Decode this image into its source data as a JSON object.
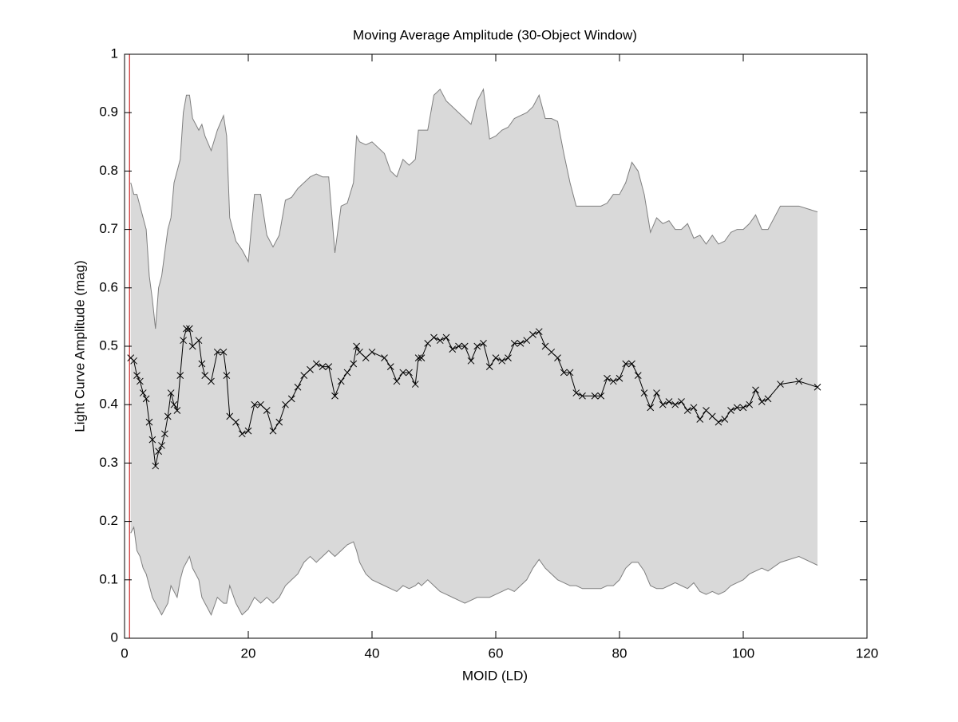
{
  "chart_data": {
    "type": "line",
    "title": "Moving Average Amplitude (30-Object Window)",
    "xlabel": "MOID (LD)",
    "ylabel": "Light Curve Amplitude (mag)",
    "x": [
      1,
      1.5,
      2,
      2.5,
      3,
      3.5,
      4,
      4.5,
      5,
      5.5,
      6,
      6.5,
      7,
      7.5,
      8,
      8.5,
      9,
      9.5,
      10,
      10.5,
      11,
      12,
      12.5,
      13,
      14,
      15,
      16,
      16.5,
      17,
      18,
      19,
      20,
      21,
      22,
      23,
      24,
      25,
      26,
      27,
      28,
      29,
      30,
      31,
      32,
      33,
      34,
      35,
      36,
      37,
      37.5,
      38,
      39,
      40,
      42,
      43,
      44,
      45,
      46,
      47,
      47.5,
      48,
      49,
      50,
      51,
      52,
      53,
      54,
      55,
      56,
      57,
      58,
      59,
      60,
      61,
      62,
      63,
      64,
      65,
      66,
      67,
      68,
      69,
      70,
      71,
      72,
      73,
      74,
      76,
      77,
      78,
      79,
      80,
      81,
      82,
      83,
      84,
      85,
      86,
      87,
      88,
      89,
      90,
      91,
      92,
      93,
      94,
      95,
      96,
      97,
      98,
      99,
      100,
      101,
      102,
      103,
      104,
      106,
      109,
      112
    ],
    "series": [
      {
        "color": "#000000",
        "marker": "x",
        "values": [
          0.48,
          0.475,
          0.45,
          0.44,
          0.42,
          0.41,
          0.37,
          0.34,
          0.295,
          0.32,
          0.33,
          0.35,
          0.38,
          0.42,
          0.4,
          0.39,
          0.45,
          0.51,
          0.53,
          0.53,
          0.5,
          0.51,
          0.47,
          0.45,
          0.44,
          0.49,
          0.49,
          0.45,
          0.38,
          0.37,
          0.35,
          0.355,
          0.4,
          0.4,
          0.39,
          0.355,
          0.37,
          0.4,
          0.41,
          0.43,
          0.45,
          0.46,
          0.47,
          0.465,
          0.465,
          0.415,
          0.44,
          0.455,
          0.47,
          0.5,
          0.49,
          0.48,
          0.49,
          0.48,
          0.465,
          0.44,
          0.455,
          0.455,
          0.435,
          0.48,
          0.48,
          0.505,
          0.515,
          0.51,
          0.515,
          0.495,
          0.5,
          0.5,
          0.475,
          0.5,
          0.505,
          0.465,
          0.48,
          0.475,
          0.48,
          0.505,
          0.505,
          0.51,
          0.52,
          0.525,
          0.5,
          0.49,
          0.48,
          0.455,
          0.455,
          0.42,
          0.415,
          0.415,
          0.415,
          0.445,
          0.44,
          0.445,
          0.47,
          0.47,
          0.45,
          0.42,
          0.395,
          0.42,
          0.4,
          0.405,
          0.4,
          0.405,
          0.39,
          0.395,
          0.375,
          0.39,
          0.38,
          0.37,
          0.375,
          0.39,
          0.395,
          0.395,
          0.4,
          0.425,
          0.405,
          0.41,
          0.435,
          0.44,
          0.43
        ]
      }
    ],
    "band": {
      "color": "#d9d9d9",
      "edge_color": "#7f7f7f",
      "upper": [
        0.78,
        0.76,
        0.76,
        0.74,
        0.72,
        0.7,
        0.62,
        0.58,
        0.53,
        0.6,
        0.62,
        0.66,
        0.7,
        0.72,
        0.78,
        0.8,
        0.82,
        0.9,
        0.93,
        0.93,
        0.89,
        0.87,
        0.88,
        0.86,
        0.835,
        0.87,
        0.895,
        0.86,
        0.72,
        0.68,
        0.665,
        0.645,
        0.76,
        0.76,
        0.69,
        0.67,
        0.69,
        0.75,
        0.755,
        0.77,
        0.78,
        0.79,
        0.795,
        0.79,
        0.79,
        0.66,
        0.74,
        0.745,
        0.78,
        0.86,
        0.85,
        0.845,
        0.85,
        0.83,
        0.8,
        0.79,
        0.82,
        0.81,
        0.82,
        0.87,
        0.87,
        0.87,
        0.93,
        0.94,
        0.92,
        0.91,
        0.9,
        0.89,
        0.88,
        0.92,
        0.94,
        0.855,
        0.86,
        0.87,
        0.875,
        0.89,
        0.895,
        0.9,
        0.91,
        0.93,
        0.89,
        0.89,
        0.885,
        0.83,
        0.78,
        0.74,
        0.74,
        0.74,
        0.74,
        0.745,
        0.76,
        0.76,
        0.78,
        0.815,
        0.8,
        0.76,
        0.695,
        0.72,
        0.71,
        0.715,
        0.7,
        0.7,
        0.71,
        0.685,
        0.69,
        0.675,
        0.69,
        0.675,
        0.68,
        0.695,
        0.7,
        0.7,
        0.71,
        0.725,
        0.7,
        0.7,
        0.74,
        0.74,
        0.73
      ],
      "lower": [
        0.18,
        0.19,
        0.15,
        0.14,
        0.12,
        0.11,
        0.09,
        0.07,
        0.06,
        0.05,
        0.04,
        0.05,
        0.06,
        0.09,
        0.08,
        0.07,
        0.1,
        0.12,
        0.13,
        0.14,
        0.12,
        0.1,
        0.07,
        0.06,
        0.04,
        0.07,
        0.06,
        0.06,
        0.09,
        0.06,
        0.04,
        0.05,
        0.07,
        0.06,
        0.07,
        0.06,
        0.07,
        0.09,
        0.1,
        0.11,
        0.13,
        0.14,
        0.13,
        0.14,
        0.15,
        0.14,
        0.15,
        0.16,
        0.165,
        0.15,
        0.13,
        0.11,
        0.1,
        0.09,
        0.085,
        0.08,
        0.09,
        0.085,
        0.09,
        0.095,
        0.09,
        0.1,
        0.09,
        0.08,
        0.075,
        0.07,
        0.065,
        0.06,
        0.065,
        0.07,
        0.07,
        0.07,
        0.075,
        0.08,
        0.085,
        0.08,
        0.09,
        0.1,
        0.12,
        0.135,
        0.12,
        0.11,
        0.1,
        0.095,
        0.09,
        0.09,
        0.085,
        0.085,
        0.085,
        0.09,
        0.09,
        0.1,
        0.12,
        0.13,
        0.13,
        0.115,
        0.09,
        0.085,
        0.085,
        0.09,
        0.095,
        0.09,
        0.085,
        0.095,
        0.08,
        0.075,
        0.08,
        0.075,
        0.08,
        0.09,
        0.095,
        0.1,
        0.11,
        0.115,
        0.12,
        0.115,
        0.13,
        0.14,
        0.125
      ]
    },
    "vline": {
      "x": 0.8,
      "color": "#c00000"
    },
    "xlim": [
      0,
      120
    ],
    "xticks": [
      0,
      20,
      40,
      60,
      80,
      100,
      120
    ],
    "ylim": [
      0,
      1
    ],
    "yticks": [
      0,
      0.1,
      0.2,
      0.3,
      0.4,
      0.5,
      0.6,
      0.7,
      0.8,
      0.9,
      1
    ]
  }
}
